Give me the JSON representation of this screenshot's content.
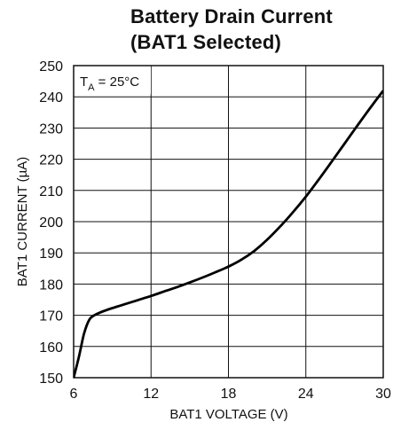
{
  "chart_data": {
    "type": "line",
    "title_line1": "Battery Drain Current",
    "title_line2": "(BAT1 Selected)",
    "xlabel": "BAT1 VOLTAGE (V)",
    "ylabel": "BAT1 CURRENT (µA)",
    "annotation": {
      "main": "T",
      "sub": "A",
      "rest": " = 25°C"
    },
    "xlim": [
      6,
      30
    ],
    "ylim": [
      150,
      250
    ],
    "xticks": [
      6,
      12,
      18,
      24,
      30
    ],
    "yticks": [
      150,
      160,
      170,
      180,
      190,
      200,
      210,
      220,
      230,
      240,
      250
    ],
    "grid": true,
    "series": [
      {
        "x": [
          6.0,
          6.4,
          6.8,
          7.2,
          7.6,
          8.0,
          8.5,
          9.0,
          10.0,
          11.0,
          12.0,
          13.0,
          14.0,
          15.0,
          16.0,
          17.0,
          18.0,
          19.0,
          20.0,
          21.0,
          22.0,
          23.0,
          24.0,
          25.0,
          26.0,
          27.0,
          28.0,
          29.0,
          30.0
        ],
        "values": [
          150.0,
          156.5,
          164.0,
          168.5,
          170.0,
          170.8,
          171.6,
          172.3,
          173.6,
          174.9,
          176.2,
          177.6,
          179.0,
          180.5,
          182.1,
          183.8,
          185.6,
          187.8,
          190.6,
          194.2,
          198.4,
          203.0,
          208.0,
          213.5,
          219.2,
          225.0,
          230.8,
          236.5,
          242.0
        ]
      }
    ]
  }
}
